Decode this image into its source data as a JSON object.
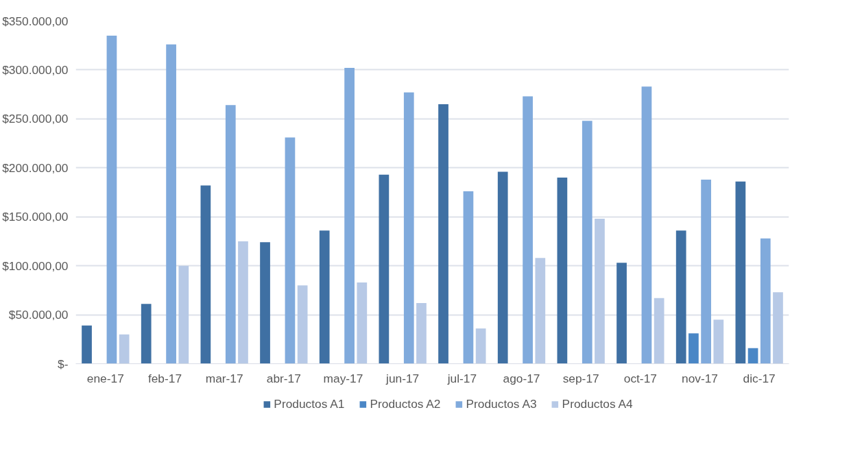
{
  "chart_data": {
    "type": "bar",
    "categories": [
      "ene-17",
      "feb-17",
      "mar-17",
      "abr-17",
      "may-17",
      "jun-17",
      "jul-17",
      "ago-17",
      "sep-17",
      "oct-17",
      "nov-17",
      "dic-17"
    ],
    "series": [
      {
        "name": "Productos A1",
        "color": "#3f70a3",
        "values": [
          39000,
          61000,
          182000,
          124000,
          136000,
          193000,
          265000,
          196000,
          190000,
          103000,
          136000,
          186000
        ]
      },
      {
        "name": "Productos A2",
        "color": "#4a87c6",
        "values": [
          0,
          0,
          0,
          0,
          0,
          0,
          0,
          0,
          0,
          0,
          31000,
          16000
        ]
      },
      {
        "name": "Productos A3",
        "color": "#80aadc",
        "values": [
          335000,
          326000,
          264000,
          231000,
          302000,
          277000,
          176000,
          273000,
          248000,
          283000,
          188000,
          128000
        ]
      },
      {
        "name": "Productos A4",
        "color": "#b7c9e6",
        "values": [
          30000,
          100000,
          125000,
          80000,
          83000,
          62000,
          36000,
          108000,
          148000,
          67000,
          45000,
          73000
        ]
      }
    ],
    "ylim": [
      0,
      350000
    ],
    "yticks": [
      {
        "value": 0,
        "label": "$-"
      },
      {
        "value": 50000,
        "label": "$50.000,00"
      },
      {
        "value": 100000,
        "label": "$100.000,00"
      },
      {
        "value": 150000,
        "label": "$150.000,00"
      },
      {
        "value": 200000,
        "label": "$200.000,00"
      },
      {
        "value": 250000,
        "label": "$250.000,00"
      },
      {
        "value": 300000,
        "label": "$300.000,00"
      },
      {
        "value": 350000,
        "label": "$350.000,00"
      }
    ],
    "grid": "y",
    "legend": "bottom"
  }
}
